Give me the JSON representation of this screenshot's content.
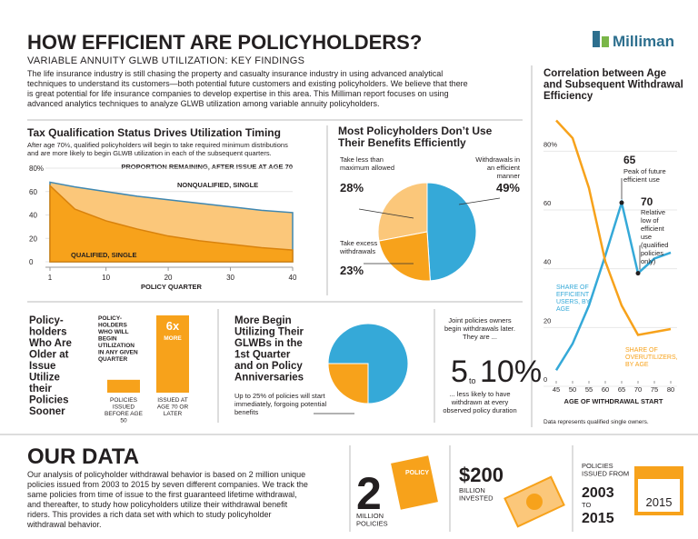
{
  "header": {
    "title": "HOW EFFICIENT ARE POLICYHOLDERS?",
    "subtitle": "VARIABLE ANNUITY GLWB UTILIZATION: KEY FINDINGS",
    "logo": "Milliman",
    "intro": "The life insurance industry is still chasing the property and casualty insurance industry in using advanced analytical techniques to understand its customers—both potential future customers and existing policyholders. We believe that there is great potential for life insurance companies to develop expertise in this area. This Milliman report focuses on using advanced analytics techniques to analyze GLWB utilization among variable annuity policyholders."
  },
  "chart_data": [
    {
      "type": "area",
      "title": "Tax Qualification Status Drives Utilization Timing",
      "subtitle": "After age 70½, qualified policyholders will begin to take required minimum distributions and are more likely to begin GLWB utilization in each of the subsequent quarters.",
      "annotation": "PROPORTION REMAINING, AFTER ISSUE AT AGE 70",
      "x_label": "POLICY QUARTER",
      "x": [
        1,
        5,
        10,
        15,
        20,
        25,
        30,
        35,
        40
      ],
      "series": [
        {
          "name": "NONQUALIFIED, SINGLE",
          "color": "#fbc77a",
          "values": [
            68,
            64,
            60,
            56,
            53,
            50,
            47,
            44,
            42
          ]
        },
        {
          "name": "QUALIFIED, SINGLE",
          "color": "#f7a21b",
          "values": [
            65,
            45,
            35,
            28,
            22,
            18,
            15,
            12,
            10
          ]
        }
      ],
      "xlim": [
        1,
        40
      ],
      "xticks": [
        1,
        10,
        20,
        30,
        40
      ],
      "ylim": [
        0,
        80
      ],
      "yticks": [
        0,
        20,
        40,
        60,
        {
          "value": 80,
          "label": "80%"
        }
      ]
    },
    {
      "type": "pie",
      "title": "Most Policyholders Don’t Use Their Benefits Efficiently",
      "categories": [
        "Take less than maximum allowed",
        "Withdrawals in an efficient manner",
        "Take excess withdrawals"
      ],
      "values": [
        28,
        49,
        23
      ],
      "value_labels": [
        "28%",
        "49%",
        "23%"
      ],
      "colors": [
        "#fbc77a",
        "#35a9d8",
        "#f7a21b"
      ]
    },
    {
      "type": "bar",
      "title_lines": [
        "Policy-",
        "holders",
        "Who Are",
        "Older at",
        "Issue",
        "Utilize",
        "their",
        "Policies",
        "Sooner"
      ],
      "note_lines": [
        "POLICY-",
        "HOLDERS",
        "WHO WILL",
        "BEGIN",
        "UTILIZATION",
        "IN ANY GIVEN",
        "QUARTER"
      ],
      "categories": [
        "POLICIES ISSUED BEFORE AGE 50",
        "ISSUED AT AGE 70 OR LATER"
      ],
      "values": [
        1,
        6
      ],
      "value_labels": [
        null,
        "6x"
      ],
      "annotation": "MORE",
      "color": "#f7a21b"
    },
    {
      "type": "pie",
      "title_lines": [
        "More Begin",
        "Utilizing Their",
        "GLWBs in the",
        "1st Quarter",
        "and on Policy",
        "Anniversaries"
      ],
      "note": "Up to 25% of policies will start immediately, forgoing potential benefits",
      "values": [
        25,
        75
      ],
      "colors": [
        "#f7a21b",
        "#35a9d8"
      ]
    },
    {
      "type": "line",
      "title": "Correlation between Age and Subsequent Withdrawal Efficiency",
      "x_label": "AGE OF WITHDRAWAL START",
      "footnote": "Data represents qualified single owners.",
      "x": [
        45,
        50,
        55,
        60,
        65,
        70,
        75,
        80
      ],
      "series": [
        {
          "name": "SHARE OF EFFICIENT USERS, BY AGE",
          "color": "#35a9d8",
          "values": [
            3,
            12,
            25,
            42,
            60,
            36,
            41,
            43
          ]
        },
        {
          "name": "SHARE OF OVERUTILIZERS, BY AGE",
          "color": "#f7a21b",
          "values": [
            88,
            82,
            65,
            40,
            25,
            15,
            16,
            17
          ]
        }
      ],
      "annotations": [
        {
          "x": 65,
          "title": "65",
          "text": "Peak of future efficient use"
        },
        {
          "x": 70,
          "title": "70",
          "text": "Relative low of efficient use (qualified policies only)"
        }
      ],
      "xlim": [
        45,
        80
      ],
      "xticks": [
        45,
        50,
        55,
        60,
        65,
        70,
        75,
        80
      ],
      "ylim": [
        0,
        90
      ],
      "yticks": [
        0,
        20,
        40,
        60,
        {
          "value": 80,
          "label": "80%"
        }
      ]
    }
  ],
  "joint": {
    "intro": "Joint policies owners begin withdrawals later. They are ...",
    "low": "5",
    "to": "to",
    "high": "10%",
    "text": "... less likely to have withdrawn at every observed policy duration"
  },
  "our_data": {
    "title": "OUR DATA",
    "text": "Our analysis of policyholder withdrawal behavior is based on 2 million unique policies issued from 2003 to 2015 by seven different companies. We track the same policies from time of issue to the first guaranteed lifetime withdrawal, and thereafter, to study how policyholders utilize their withdrawal benefit riders. This provides a rich data set with which to study policyholder withdrawal behavior.",
    "policies_number": "2",
    "policies_label": [
      "MILLION",
      "POLICIES"
    ],
    "policy_icon": "POLICY",
    "invested_number": "$200",
    "invested_label": [
      "BILLION",
      "INVESTED"
    ],
    "issued_label": [
      "POLICIES",
      "ISSUED FROM"
    ],
    "issued_from": "2003",
    "issued_to_word": "TO",
    "issued_to": "2015",
    "calendar": "2015"
  }
}
